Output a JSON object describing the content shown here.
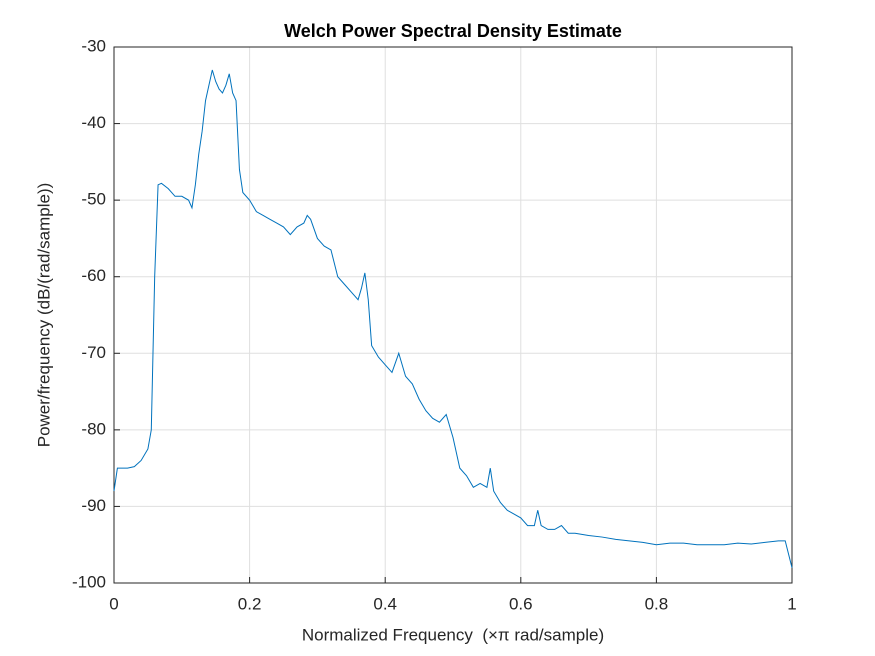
{
  "chart_data": {
    "type": "line",
    "title": "Welch Power Spectral Density Estimate",
    "x_label": "Normalized Frequency  (×π rad/sample)",
    "y_label": "Power/frequency (dB/(rad/sample))",
    "x": [
      0,
      0.005,
      0.01,
      0.02,
      0.03,
      0.04,
      0.05,
      0.055,
      0.06,
      0.065,
      0.07,
      0.08,
      0.09,
      0.1,
      0.11,
      0.115,
      0.12,
      0.125,
      0.13,
      0.135,
      0.14,
      0.145,
      0.15,
      0.155,
      0.16,
      0.165,
      0.17,
      0.175,
      0.18,
      0.185,
      0.19,
      0.2,
      0.21,
      0.22,
      0.23,
      0.24,
      0.25,
      0.26,
      0.27,
      0.28,
      0.285,
      0.29,
      0.3,
      0.31,
      0.32,
      0.33,
      0.34,
      0.35,
      0.36,
      0.365,
      0.37,
      0.375,
      0.38,
      0.39,
      0.4,
      0.41,
      0.42,
      0.43,
      0.44,
      0.45,
      0.46,
      0.47,
      0.48,
      0.49,
      0.5,
      0.51,
      0.52,
      0.53,
      0.54,
      0.55,
      0.555,
      0.56,
      0.57,
      0.58,
      0.59,
      0.6,
      0.61,
      0.62,
      0.625,
      0.63,
      0.64,
      0.65,
      0.66,
      0.67,
      0.68,
      0.7,
      0.72,
      0.74,
      0.76,
      0.78,
      0.8,
      0.82,
      0.84,
      0.86,
      0.88,
      0.9,
      0.92,
      0.94,
      0.96,
      0.98,
      0.99,
      1
    ],
    "series": [
      {
        "name": "PSD",
        "color": "#0072bd",
        "values": [
          -88,
          -85,
          -85,
          -85,
          -84.8,
          -84,
          -82.5,
          -80,
          -60,
          -48,
          -47.8,
          -48.5,
          -49.5,
          -49.5,
          -50,
          -51,
          -48,
          -44,
          -41,
          -37,
          -35,
          -33,
          -34.5,
          -35.5,
          -36,
          -35,
          -33.5,
          -36,
          -37,
          -46,
          -49,
          -50,
          -51.5,
          -52,
          -52.5,
          -53,
          -53.5,
          -54.5,
          -53.5,
          -53,
          -52,
          -52.5,
          -55,
          -56,
          -56.5,
          -60,
          -61,
          -62,
          -63,
          -61.5,
          -59.5,
          -63,
          -69,
          -70.5,
          -71.5,
          -72.5,
          -70,
          -73,
          -74,
          -76,
          -77.5,
          -78.5,
          -79,
          -78,
          -81,
          -85,
          -86,
          -87.5,
          -87,
          -87.5,
          -85,
          -88,
          -89.5,
          -90.5,
          -91,
          -91.5,
          -92.5,
          -92.5,
          -90.5,
          -92.5,
          -93,
          -93,
          -92.5,
          -93.5,
          -93.5,
          -93.8,
          -94,
          -94.3,
          -94.5,
          -94.7,
          -95,
          -94.8,
          -94.8,
          -95,
          -95,
          -95,
          -94.8,
          -94.9,
          -94.7,
          -94.5,
          -94.5,
          -98
        ]
      }
    ],
    "xlim": [
      0,
      1
    ],
    "xticks": [
      0,
      0.2,
      0.4,
      0.6,
      0.8,
      1
    ],
    "ylim": [
      -100,
      -30
    ],
    "yticks": [
      -100,
      -90,
      -80,
      -70,
      -60,
      -50,
      -40,
      -30
    ],
    "grid": true
  }
}
